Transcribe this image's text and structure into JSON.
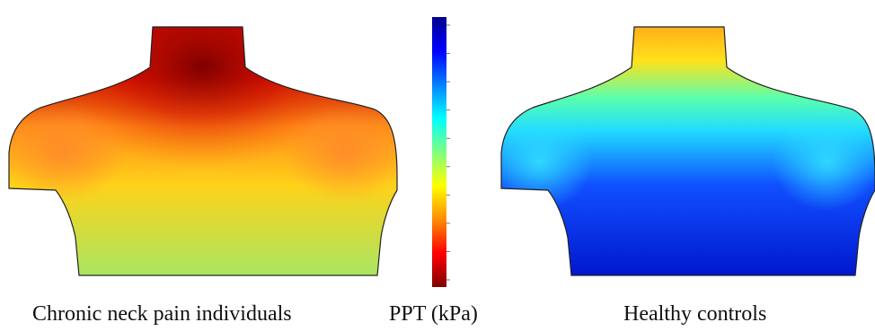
{
  "captions": {
    "left": "Chronic neck pain individuals",
    "middle": "PPT (kPa)",
    "right": "Healthy controls"
  },
  "colormap": {
    "name": "jet",
    "stops": [
      "#7f0000",
      "#ff0000",
      "#ff8c00",
      "#ffff00",
      "#7fff7f",
      "#00ffff",
      "#0080ff",
      "#0000ff",
      "#00008f"
    ]
  },
  "colorbar": {
    "ticks": [
      "",
      "",
      "",
      "",
      "",
      "",
      "",
      "",
      "",
      ""
    ]
  },
  "maps": {
    "chronic": {
      "neck": "#8f0000",
      "shoulders": "#ff8c1a",
      "upper_chest": "#ffd21a",
      "lower_chest": "#9ee86a"
    },
    "healthy": {
      "neck": "#ffa21a",
      "shoulders": "#20dcff",
      "upper_chest": "#1050ff",
      "lower_chest": "#0010c8"
    }
  }
}
